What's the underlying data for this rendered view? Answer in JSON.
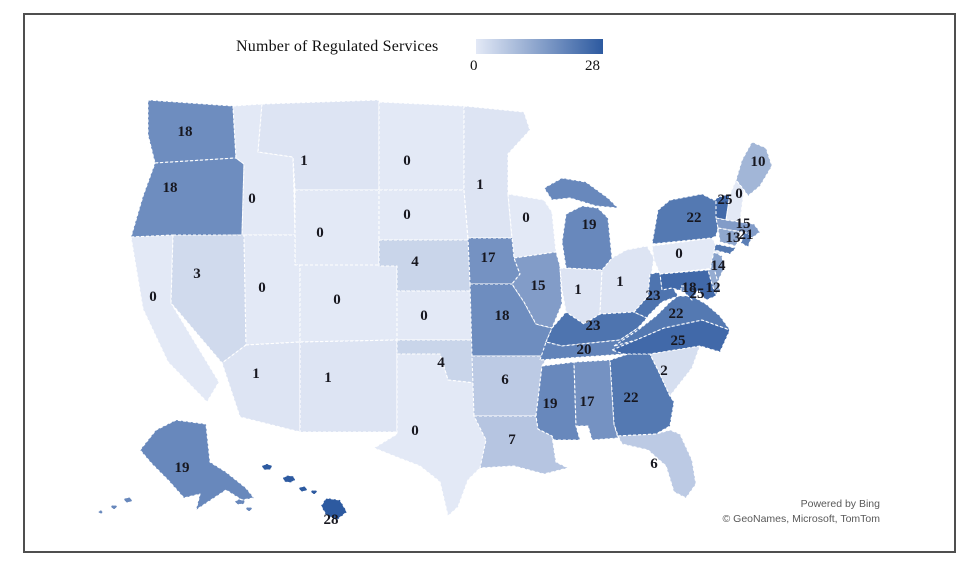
{
  "legend": {
    "title": "Number of Regulated Services",
    "min_label": "0",
    "max_label": "28"
  },
  "attribution": {
    "line1": "Powered by Bing",
    "line2": "© GeoNames, Microsoft, TomTom"
  },
  "chart_data": {
    "type": "choropleth",
    "title": "Number of Regulated Services",
    "region": "United States by state",
    "legend_position": "top",
    "scale": {
      "min": 0,
      "max": 28,
      "min_color": "#e3e9f6",
      "max_color": "#2d5aa0"
    },
    "states": [
      {
        "code": "WA",
        "name": "Washington",
        "value": 18
      },
      {
        "code": "OR",
        "name": "Oregon",
        "value": 18
      },
      {
        "code": "CA",
        "name": "California",
        "value": 0
      },
      {
        "code": "NV",
        "name": "Nevada",
        "value": 3
      },
      {
        "code": "ID",
        "name": "Idaho",
        "value": 0
      },
      {
        "code": "MT",
        "name": "Montana",
        "value": 1
      },
      {
        "code": "WY",
        "name": "Wyoming",
        "value": 0
      },
      {
        "code": "UT",
        "name": "Utah",
        "value": 0
      },
      {
        "code": "CO",
        "name": "Colorado",
        "value": 0
      },
      {
        "code": "AZ",
        "name": "Arizona",
        "value": 1
      },
      {
        "code": "NM",
        "name": "New Mexico",
        "value": 1
      },
      {
        "code": "ND",
        "name": "North Dakota",
        "value": 0
      },
      {
        "code": "SD",
        "name": "South Dakota",
        "value": 0
      },
      {
        "code": "NE",
        "name": "Nebraska",
        "value": 4
      },
      {
        "code": "KS",
        "name": "Kansas",
        "value": 0
      },
      {
        "code": "OK",
        "name": "Oklahoma",
        "value": 4
      },
      {
        "code": "TX",
        "name": "Texas",
        "value": 0
      },
      {
        "code": "MN",
        "name": "Minnesota",
        "value": 1
      },
      {
        "code": "WI",
        "name": "Wisconsin",
        "value": 0
      },
      {
        "code": "IA",
        "name": "Iowa",
        "value": 17
      },
      {
        "code": "MO",
        "name": "Missouri",
        "value": 18
      },
      {
        "code": "AR",
        "name": "Arkansas",
        "value": 6
      },
      {
        "code": "LA",
        "name": "Louisiana",
        "value": 7
      },
      {
        "code": "IL",
        "name": "Illinois",
        "value": 15
      },
      {
        "code": "IN",
        "name": "Indiana",
        "value": 1
      },
      {
        "code": "OH",
        "name": "Ohio",
        "value": 1
      },
      {
        "code": "MI",
        "name": "Michigan",
        "value": 19
      },
      {
        "code": "KY",
        "name": "Kentucky",
        "value": 23
      },
      {
        "code": "TN",
        "name": "Tennessee",
        "value": 20
      },
      {
        "code": "MS",
        "name": "Mississippi",
        "value": 19
      },
      {
        "code": "AL",
        "name": "Alabama",
        "value": 17
      },
      {
        "code": "GA",
        "name": "Georgia",
        "value": 22
      },
      {
        "code": "FL",
        "name": "Florida",
        "value": 6
      },
      {
        "code": "SC",
        "name": "South Carolina",
        "value": 2
      },
      {
        "code": "NC",
        "name": "North Carolina",
        "value": 25
      },
      {
        "code": "VA",
        "name": "Virginia",
        "value": 22
      },
      {
        "code": "WV",
        "name": "West Virginia",
        "value": 23
      },
      {
        "code": "PA",
        "name": "Pennsylvania",
        "value": 0
      },
      {
        "code": "NY",
        "name": "New York",
        "value": 22
      },
      {
        "code": "NJ",
        "name": "New Jersey",
        "value": 14
      },
      {
        "code": "DE",
        "name": "Delaware",
        "value": 12
      },
      {
        "code": "MD",
        "name": "Maryland",
        "value": 25
      },
      {
        "code": "DC",
        "name": "District of Columbia",
        "value": 18
      },
      {
        "code": "VT",
        "name": "Vermont",
        "value": 25
      },
      {
        "code": "NH",
        "name": "New Hampshire",
        "value": 0
      },
      {
        "code": "ME",
        "name": "Maine",
        "value": 10
      },
      {
        "code": "MA",
        "name": "Massachusetts",
        "value": 15
      },
      {
        "code": "CT",
        "name": "Connecticut",
        "value": 13
      },
      {
        "code": "RI",
        "name": "Rhode Island",
        "value": 21
      },
      {
        "code": "AK",
        "name": "Alaska",
        "value": 19
      },
      {
        "code": "HI",
        "name": "Hawaii",
        "value": 28
      }
    ]
  }
}
